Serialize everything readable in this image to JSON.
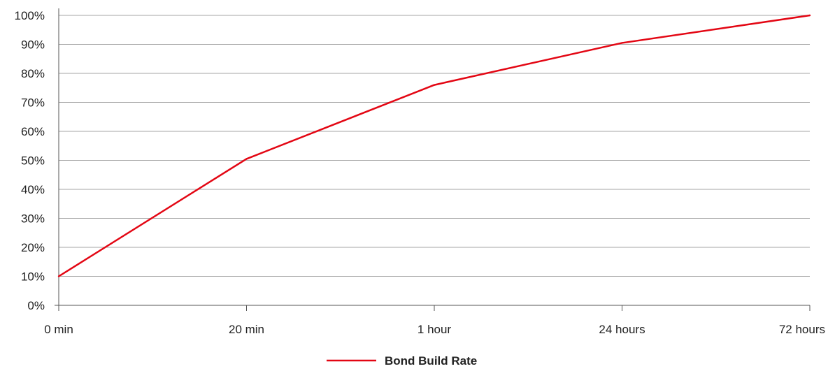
{
  "chart_data": {
    "type": "line",
    "categories": [
      "0 min",
      "20 min",
      "1 hour",
      "24 hours",
      "72 hours"
    ],
    "series": [
      {
        "name": "Bond Build Rate",
        "values": [
          10,
          50.5,
          76,
          90.5,
          100
        ],
        "color": "#e30613"
      }
    ],
    "yticks": [
      "0%",
      "10%",
      "20%",
      "30%",
      "40%",
      "50%",
      "60%",
      "70%",
      "80%",
      "90%",
      "100%"
    ],
    "ylim": [
      0,
      100
    ],
    "grid": true,
    "legend": "bottom-center",
    "axis_color": "#555555",
    "grid_color": "#a6a6a6"
  }
}
